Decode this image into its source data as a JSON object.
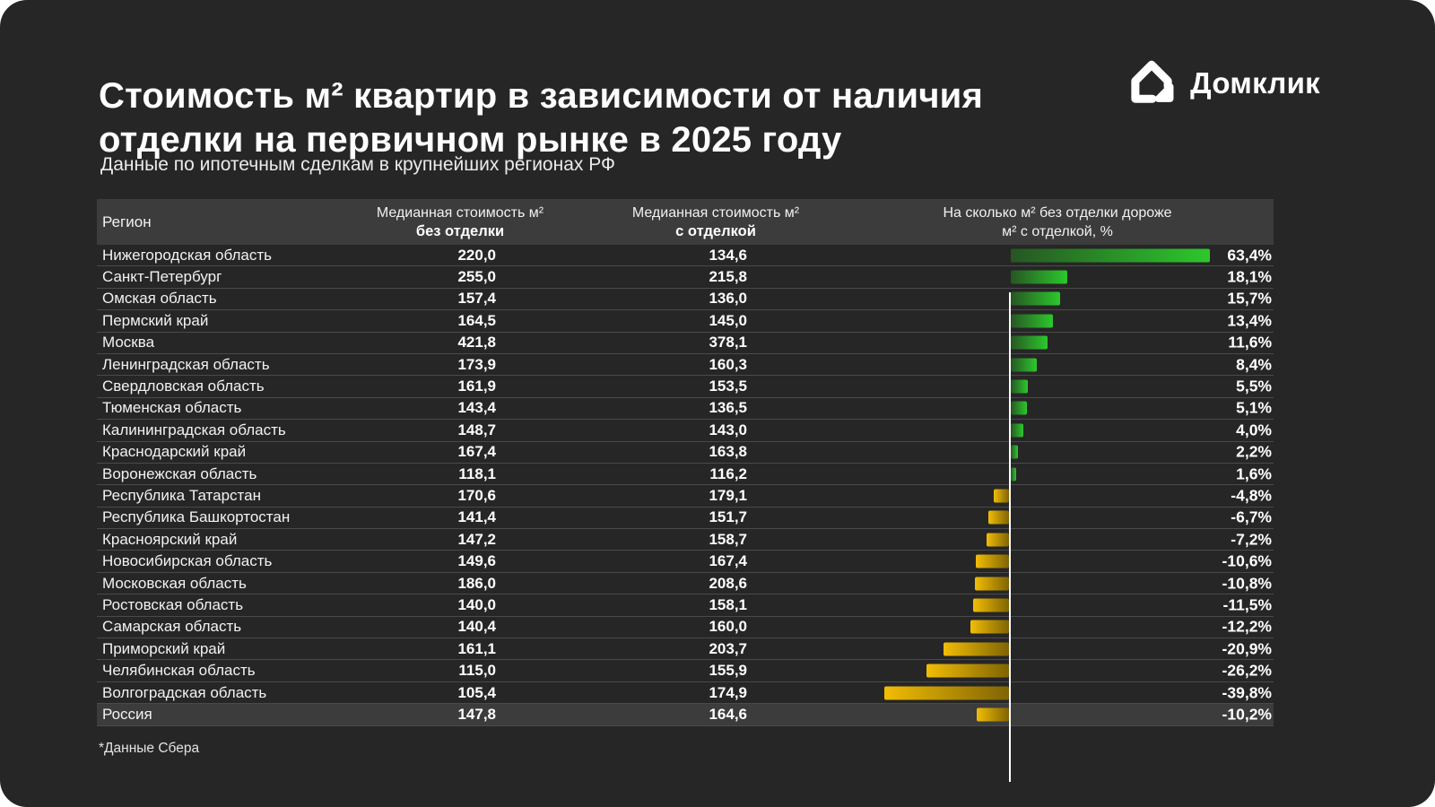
{
  "header": {
    "title_lines": [
      "Стоимость м² квартир в зависимости от наличия",
      "отделки на первичном рынке в 2025 году"
    ],
    "subtitle": "Данные по ипотечным сделкам в крупнейших регионах РФ",
    "logo_text": "Домклик"
  },
  "table": {
    "col_region": "Регион",
    "col_no_finish_line1": "Медианная стоимость м²",
    "col_no_finish_line2": "без отделки",
    "col_with_finish_line1": "Медианная стоимость м²",
    "col_with_finish_line2": "с отделкой",
    "col_diff_line1": "На сколько м² без отделки дороже",
    "col_diff_line2": "м² с отделкой, %"
  },
  "footer": {
    "note": "*Данные Сбера"
  },
  "chart_data": {
    "type": "bar",
    "title": "Стоимость м² квартир в зависимости от наличия отделки на первичном рынке в 2025 году",
    "subtitle": "Данные по ипотечным сделкам в крупнейших регионах РФ",
    "orientation": "horizontal-diverging",
    "categories": [
      "Нижегородская область",
      "Санкт-Петербург",
      "Омская область",
      "Пермский край",
      "Москва",
      "Ленинградская область",
      "Свердловская область",
      "Тюменская область",
      "Калининградская область",
      "Краснодарский край",
      "Воронежская область",
      "Республика Татарстан",
      "Республика Башкортостан",
      "Красноярский край",
      "Новосибирская область",
      "Московская область",
      "Ростовская область",
      "Самарская область",
      "Приморский край",
      "Челябинская область",
      "Волгоградская область",
      "Россия"
    ],
    "series": [
      {
        "name": "Медианная стоимость м² без отделки",
        "values": [
          220.0,
          255.0,
          157.4,
          164.5,
          421.8,
          173.9,
          161.9,
          143.4,
          148.7,
          167.4,
          118.1,
          170.6,
          141.4,
          147.2,
          149.6,
          186.0,
          140.0,
          140.4,
          161.1,
          115.0,
          105.4,
          147.8
        ]
      },
      {
        "name": "Медианная стоимость м² с отделкой",
        "values": [
          134.6,
          215.8,
          136.0,
          145.0,
          378.1,
          160.3,
          153.5,
          136.5,
          143.0,
          163.8,
          116.2,
          179.1,
          151.7,
          158.7,
          167.4,
          208.6,
          158.1,
          160.0,
          203.7,
          155.9,
          174.9,
          164.6
        ]
      },
      {
        "name": "На сколько м² без отделки дороже м² с отделкой, %",
        "values": [
          63.4,
          18.1,
          15.7,
          13.4,
          11.6,
          8.4,
          5.5,
          5.1,
          4.0,
          2.2,
          1.6,
          -4.8,
          -6.7,
          -7.2,
          -10.6,
          -10.8,
          -11.5,
          -12.2,
          -20.9,
          -26.2,
          -39.8,
          -10.2
        ]
      }
    ],
    "highlight_category": "Россия",
    "xlim": [
      -45,
      70
    ],
    "grid": false,
    "legend": false,
    "colors": {
      "green_tip": "#2cc82c",
      "green_base": "#275623",
      "yellow_tip": "#f2bd05",
      "yellow_base": "#7f6404",
      "axis": "#ffffff"
    }
  }
}
